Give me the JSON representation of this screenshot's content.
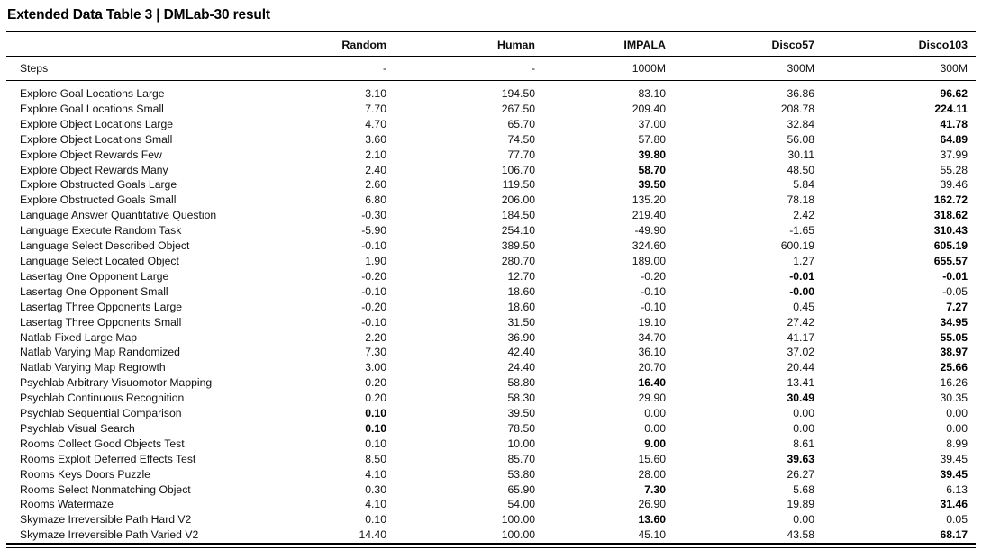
{
  "title": "Extended Data Table 3 | DMLab-30 result",
  "table": {
    "columns": [
      "",
      "Random",
      "Human",
      "IMPALA",
      "Disco57",
      "Disco103"
    ],
    "steps_row": {
      "label": "Steps",
      "values": [
        "-",
        "-",
        "1000M",
        "300M",
        "300M"
      ]
    },
    "rows": [
      {
        "label": "Explore Goal Locations Large",
        "values": [
          "3.10",
          "194.50",
          "83.10",
          "36.86",
          "96.62"
        ],
        "bold": [
          4
        ]
      },
      {
        "label": "Explore Goal Locations Small",
        "values": [
          "7.70",
          "267.50",
          "209.40",
          "208.78",
          "224.11"
        ],
        "bold": [
          4
        ]
      },
      {
        "label": "Explore Object Locations Large",
        "values": [
          "4.70",
          "65.70",
          "37.00",
          "32.84",
          "41.78"
        ],
        "bold": [
          4
        ]
      },
      {
        "label": "Explore Object Locations Small",
        "values": [
          "3.60",
          "74.50",
          "57.80",
          "56.08",
          "64.89"
        ],
        "bold": [
          4
        ]
      },
      {
        "label": "Explore Object Rewards Few",
        "values": [
          "2.10",
          "77.70",
          "39.80",
          "30.11",
          "37.99"
        ],
        "bold": [
          2
        ]
      },
      {
        "label": "Explore Object Rewards Many",
        "values": [
          "2.40",
          "106.70",
          "58.70",
          "48.50",
          "55.28"
        ],
        "bold": [
          2
        ]
      },
      {
        "label": "Explore Obstructed Goals Large",
        "values": [
          "2.60",
          "119.50",
          "39.50",
          "5.84",
          "39.46"
        ],
        "bold": [
          2
        ]
      },
      {
        "label": "Explore Obstructed Goals Small",
        "values": [
          "6.80",
          "206.00",
          "135.20",
          "78.18",
          "162.72"
        ],
        "bold": [
          4
        ]
      },
      {
        "label": "Language Answer Quantitative Question",
        "values": [
          "-0.30",
          "184.50",
          "219.40",
          "2.42",
          "318.62"
        ],
        "bold": [
          4
        ]
      },
      {
        "label": "Language Execute Random Task",
        "values": [
          "-5.90",
          "254.10",
          "-49.90",
          "-1.65",
          "310.43"
        ],
        "bold": [
          4
        ]
      },
      {
        "label": "Language Select Described Object",
        "values": [
          "-0.10",
          "389.50",
          "324.60",
          "600.19",
          "605.19"
        ],
        "bold": [
          4
        ]
      },
      {
        "label": "Language Select Located Object",
        "values": [
          "1.90",
          "280.70",
          "189.00",
          "1.27",
          "655.57"
        ],
        "bold": [
          4
        ]
      },
      {
        "label": "Lasertag One Opponent Large",
        "values": [
          "-0.20",
          "12.70",
          "-0.20",
          "-0.01",
          "-0.01"
        ],
        "bold": [
          3,
          4
        ]
      },
      {
        "label": "Lasertag One Opponent Small",
        "values": [
          "-0.10",
          "18.60",
          "-0.10",
          "-0.00",
          "-0.05"
        ],
        "bold": [
          3
        ]
      },
      {
        "label": "Lasertag Three Opponents Large",
        "values": [
          "-0.20",
          "18.60",
          "-0.10",
          "0.45",
          "7.27"
        ],
        "bold": [
          4
        ]
      },
      {
        "label": "Lasertag Three Opponents Small",
        "values": [
          "-0.10",
          "31.50",
          "19.10",
          "27.42",
          "34.95"
        ],
        "bold": [
          4
        ]
      },
      {
        "label": "Natlab Fixed Large Map",
        "values": [
          "2.20",
          "36.90",
          "34.70",
          "41.17",
          "55.05"
        ],
        "bold": [
          4
        ]
      },
      {
        "label": "Natlab Varying Map Randomized",
        "values": [
          "7.30",
          "42.40",
          "36.10",
          "37.02",
          "38.97"
        ],
        "bold": [
          4
        ]
      },
      {
        "label": "Natlab Varying Map Regrowth",
        "values": [
          "3.00",
          "24.40",
          "20.70",
          "20.44",
          "25.66"
        ],
        "bold": [
          4
        ]
      },
      {
        "label": "Psychlab Arbitrary Visuomotor Mapping",
        "values": [
          "0.20",
          "58.80",
          "16.40",
          "13.41",
          "16.26"
        ],
        "bold": [
          2
        ]
      },
      {
        "label": "Psychlab Continuous Recognition",
        "values": [
          "0.20",
          "58.30",
          "29.90",
          "30.49",
          "30.35"
        ],
        "bold": [
          3
        ]
      },
      {
        "label": "Psychlab Sequential Comparison",
        "values": [
          "0.10",
          "39.50",
          "0.00",
          "0.00",
          "0.00"
        ],
        "bold": [
          0
        ]
      },
      {
        "label": "Psychlab Visual Search",
        "values": [
          "0.10",
          "78.50",
          "0.00",
          "0.00",
          "0.00"
        ],
        "bold": [
          0
        ]
      },
      {
        "label": "Rooms Collect Good Objects Test",
        "values": [
          "0.10",
          "10.00",
          "9.00",
          "8.61",
          "8.99"
        ],
        "bold": [
          2
        ]
      },
      {
        "label": "Rooms Exploit Deferred Effects Test",
        "values": [
          "8.50",
          "85.70",
          "15.60",
          "39.63",
          "39.45"
        ],
        "bold": [
          3
        ]
      },
      {
        "label": "Rooms Keys Doors Puzzle",
        "values": [
          "4.10",
          "53.80",
          "28.00",
          "26.27",
          "39.45"
        ],
        "bold": [
          4
        ]
      },
      {
        "label": "Rooms Select Nonmatching Object",
        "values": [
          "0.30",
          "65.90",
          "7.30",
          "5.68",
          "6.13"
        ],
        "bold": [
          2
        ]
      },
      {
        "label": "Rooms Watermaze",
        "values": [
          "4.10",
          "54.00",
          "26.90",
          "19.89",
          "31.46"
        ],
        "bold": [
          4
        ]
      },
      {
        "label": "Skymaze Irreversible Path Hard V2",
        "values": [
          "0.10",
          "100.00",
          "13.60",
          "0.00",
          "0.05"
        ],
        "bold": [
          2
        ]
      },
      {
        "label": "Skymaze Irreversible Path Varied V2",
        "values": [
          "14.40",
          "100.00",
          "45.10",
          "43.58",
          "68.17"
        ],
        "bold": [
          4
        ]
      }
    ]
  }
}
